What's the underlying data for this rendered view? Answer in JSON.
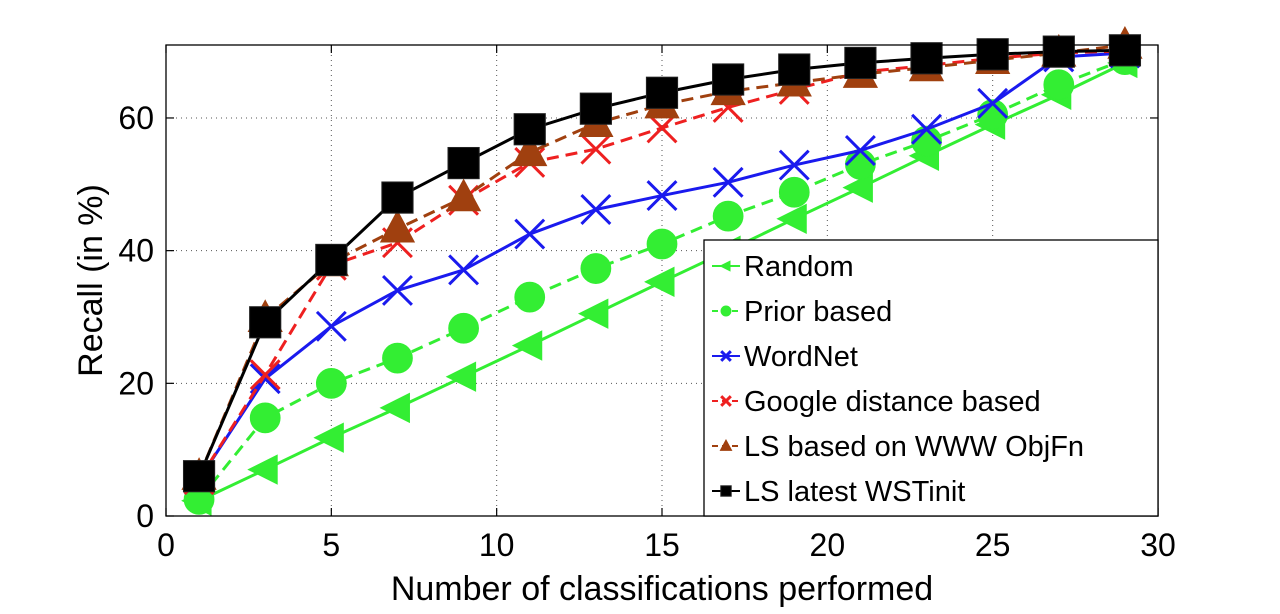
{
  "chart_data": {
    "type": "line",
    "title": "",
    "xlabel": "Number of classifications performed",
    "ylabel": "Recall (in %)",
    "xlim": [
      0,
      30
    ],
    "ylim": [
      0,
      71
    ],
    "xticks": [
      0,
      5,
      10,
      15,
      20,
      25,
      30
    ],
    "yticks": [
      0,
      20,
      40,
      60
    ],
    "grid": true,
    "legend_position": "lower-right",
    "x": [
      1,
      3,
      5,
      7,
      9,
      11,
      13,
      15,
      17,
      19,
      21,
      23,
      25,
      27,
      29
    ],
    "series": [
      {
        "name": "Random",
        "color": "#33ee33",
        "marker": "triangle-left",
        "dash": "solid",
        "values": [
          2.3,
          7.0,
          11.8,
          16.3,
          21.0,
          25.7,
          30.5,
          35.3,
          40.0,
          44.8,
          49.5,
          54.3,
          59.0,
          63.5,
          68.3
        ]
      },
      {
        "name": "Prior based",
        "color": "#33ee33",
        "marker": "circle",
        "dash": "dashed",
        "values": [
          2.5,
          14.8,
          20.0,
          23.8,
          28.3,
          33.0,
          37.3,
          41.0,
          45.2,
          48.8,
          53.0,
          56.5,
          60.5,
          65.0,
          68.8
        ]
      },
      {
        "name": "WordNet",
        "color": "#1a1aee",
        "marker": "x",
        "dash": "solid",
        "values": [
          5.5,
          20.7,
          28.6,
          34.0,
          37.1,
          42.5,
          46.2,
          48.3,
          50.3,
          52.9,
          55.1,
          58.3,
          62.2,
          69.2,
          69.8
        ]
      },
      {
        "name": "Google distance based",
        "color": "#ee2020",
        "marker": "x",
        "dash": "dashed",
        "values": [
          5.5,
          21.3,
          37.8,
          41.2,
          47.6,
          53.3,
          55.3,
          58.5,
          61.6,
          64.3,
          66.9,
          67.9,
          69.0,
          69.8,
          70.1
        ]
      },
      {
        "name": "LS based on WWW ObjFn",
        "color": "#a0400f",
        "marker": "triangle-up",
        "dash": "dashed",
        "values": [
          6.0,
          29.8,
          38.2,
          43.3,
          48.0,
          54.8,
          59.2,
          62.0,
          64.0,
          65.3,
          66.6,
          67.6,
          68.7,
          69.8,
          71.0
        ]
      },
      {
        "name": "LS latest WSTinit",
        "color": "#000000",
        "marker": "square",
        "dash": "solid",
        "values": [
          6.0,
          29.2,
          38.6,
          48.0,
          53.2,
          58.3,
          61.4,
          63.8,
          65.8,
          67.3,
          68.3,
          69.0,
          69.6,
          70.0,
          70.2
        ]
      }
    ]
  }
}
